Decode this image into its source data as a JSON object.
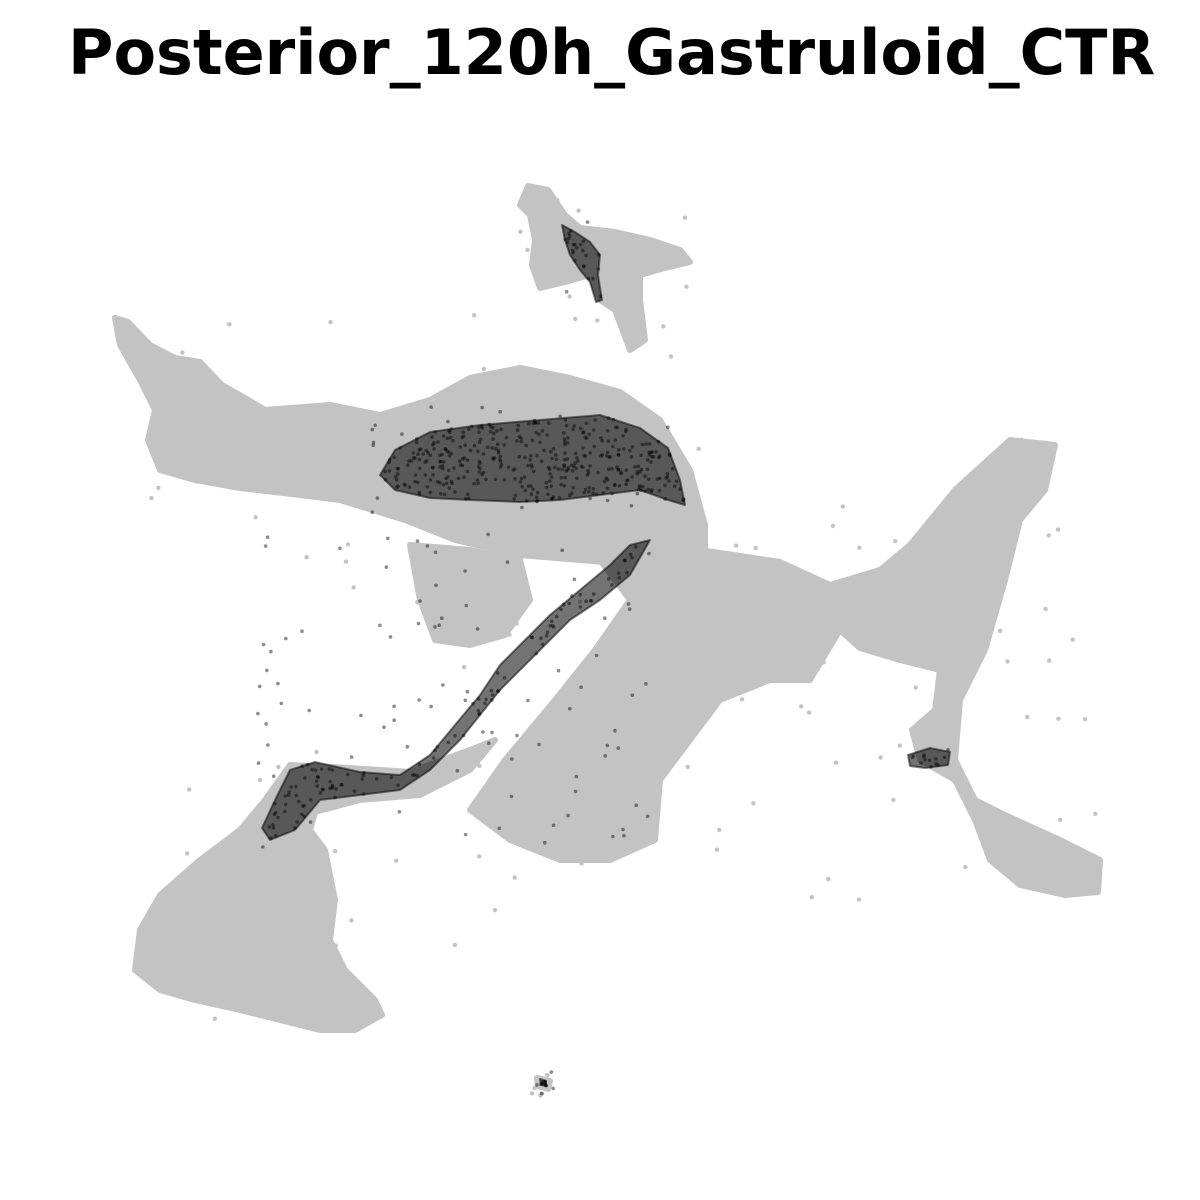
{
  "chart_data": {
    "type": "scatter",
    "title": "Posterior_120h_Gastruloid_CTR",
    "xlabel": "",
    "ylabel": "",
    "axes_visible": false,
    "grid": false,
    "legend": "none",
    "series": [
      {
        "role": "background-cells",
        "color": "#c3c3c3",
        "regions": [
          {
            "poly": [
              [
                115,
                318
              ],
              [
                128,
                322
              ],
              [
                150,
                345
              ],
              [
                175,
                358
              ],
              [
                200,
                362
              ],
              [
                222,
                385
              ],
              [
                245,
                398
              ],
              [
                265,
                410
              ],
              [
                330,
                405
              ],
              [
                380,
                415
              ],
              [
                430,
                400
              ],
              [
                470,
                378
              ],
              [
                520,
                368
              ],
              [
                570,
                378
              ],
              [
                620,
                392
              ],
              [
                660,
                420
              ],
              [
                690,
                470
              ],
              [
                705,
                525
              ],
              [
                705,
                560
              ],
              [
                690,
                580
              ],
              [
                640,
                565
              ],
              [
                580,
                560
              ],
              [
                520,
                555
              ],
              [
                455,
                540
              ],
              [
                405,
                520
              ],
              [
                340,
                500
              ],
              [
                300,
                495
              ],
              [
                240,
                488
              ],
              [
                195,
                480
              ],
              [
                160,
                470
              ],
              [
                148,
                440
              ],
              [
                155,
                410
              ],
              [
                140,
                380
              ],
              [
                120,
                345
              ]
            ]
          },
          {
            "poly": [
              [
                410,
                545
              ],
              [
                470,
                550
              ],
              [
                520,
                560
              ],
              [
                530,
                600
              ],
              [
                505,
                635
              ],
              [
                470,
                645
              ],
              [
                435,
                640
              ],
              [
                420,
                600
              ]
            ]
          },
          {
            "poly": [
              [
                600,
                560
              ],
              [
                700,
                550
              ],
              [
                780,
                562
              ],
              [
                830,
                585
              ],
              [
                880,
                570
              ],
              [
                910,
                545
              ],
              [
                955,
                490
              ],
              [
                1010,
                440
              ],
              [
                1055,
                445
              ],
              [
                1045,
                490
              ],
              [
                1020,
                520
              ],
              [
                1005,
                580
              ],
              [
                985,
                650
              ],
              [
                960,
                700
              ],
              [
                955,
                760
              ],
              [
                975,
                800
              ],
              [
                1005,
                815
              ],
              [
                1060,
                840
              ],
              [
                1100,
                860
              ],
              [
                1098,
                892
              ],
              [
                1065,
                895
              ],
              [
                1020,
                885
              ],
              [
                990,
                860
              ],
              [
                975,
                820
              ],
              [
                955,
                780
              ],
              [
                920,
                760
              ],
              [
                912,
                730
              ],
              [
                935,
                710
              ],
              [
                940,
                670
              ],
              [
                900,
                660
              ],
              [
                860,
                648
              ],
              [
                840,
                630
              ],
              [
                810,
                680
              ],
              [
                770,
                680
              ],
              [
                720,
                700
              ],
              [
                690,
                740
              ],
              [
                660,
                780
              ],
              [
                655,
                840
              ],
              [
                610,
                860
              ],
              [
                560,
                860
              ],
              [
                510,
                840
              ],
              [
                470,
                810
              ],
              [
                505,
                760
              ],
              [
                555,
                700
              ],
              [
                595,
                650
              ],
              [
                630,
                600
              ]
            ]
          },
          {
            "poly": [
              [
                290,
                765
              ],
              [
                350,
                768
              ],
              [
                410,
                772
              ],
              [
                470,
                750
              ],
              [
                495,
                740
              ],
              [
                470,
                770
              ],
              [
                420,
                795
              ],
              [
                360,
                800
              ],
              [
                315,
                812
              ],
              [
                310,
                830
              ],
              [
                325,
                850
              ],
              [
                335,
                900
              ],
              [
                330,
                940
              ],
              [
                345,
                970
              ],
              [
                375,
                1000
              ],
              [
                382,
                1015
              ],
              [
                355,
                1030
              ],
              [
                320,
                1030
              ],
              [
                280,
                1020
              ],
              [
                240,
                1010
              ],
              [
                195,
                1000
              ],
              [
                160,
                990
              ],
              [
                135,
                970
              ],
              [
                140,
                930
              ],
              [
                160,
                895
              ],
              [
                200,
                860
              ],
              [
                240,
                830
              ],
              [
                265,
                800
              ]
            ]
          },
          {
            "poly": [
              [
                528,
                186
              ],
              [
                548,
                190
              ],
              [
                565,
                215
              ],
              [
                580,
                228
              ],
              [
                615,
                232
              ],
              [
                650,
                240
              ],
              [
                680,
                250
              ],
              [
                690,
                262
              ],
              [
                665,
                268
              ],
              [
                640,
                275
              ],
              [
                640,
                300
              ],
              [
                645,
                340
              ],
              [
                630,
                350
              ],
              [
                615,
                310
              ],
              [
                600,
                300
              ],
              [
                590,
                275
              ],
              [
                565,
                282
              ],
              [
                540,
                288
              ],
              [
                532,
                265
              ],
              [
                535,
                240
              ],
              [
                530,
                215
              ],
              [
                520,
                205
              ]
            ]
          },
          {
            "poly": [
              [
                537,
                1078
              ],
              [
                550,
                1081
              ],
              [
                548,
                1089
              ],
              [
                538,
                1086
              ]
            ]
          }
        ]
      },
      {
        "role": "highlighted-cells",
        "color": "#000000",
        "regions": [
          {
            "poly": [
              [
                395,
                450
              ],
              [
                430,
                432
              ],
              [
                480,
                425
              ],
              [
                540,
                420
              ],
              [
                600,
                415
              ],
              [
                640,
                428
              ],
              [
                668,
                448
              ],
              [
                680,
                480
              ],
              [
                685,
                505
              ],
              [
                668,
                500
              ],
              [
                640,
                490
              ],
              [
                600,
                495
              ],
              [
                560,
                500
              ],
              [
                520,
                502
              ],
              [
                470,
                500
              ],
              [
                430,
                498
              ],
              [
                395,
                490
              ],
              [
                380,
                475
              ]
            ]
          },
          {
            "poly": [
              [
                650,
                540
              ],
              [
                630,
                575
              ],
              [
                600,
                600
              ],
              [
                570,
                620
              ],
              [
                545,
                645
              ],
              [
                520,
                670
              ],
              [
                500,
                690
              ],
              [
                480,
                715
              ],
              [
                460,
                740
              ],
              [
                430,
                770
              ],
              [
                400,
                790
              ],
              [
                360,
                795
              ],
              [
                320,
                800
              ],
              [
                295,
                830
              ],
              [
                270,
                840
              ],
              [
                262,
                828
              ],
              [
                275,
                800
              ],
              [
                290,
                770
              ],
              [
                315,
                762
              ],
              [
                360,
                772
              ],
              [
                400,
                775
              ],
              [
                430,
                755
              ],
              [
                455,
                725
              ],
              [
                480,
                695
              ],
              [
                500,
                665
              ],
              [
                525,
                640
              ],
              [
                550,
                615
              ],
              [
                580,
                590
              ],
              [
                610,
                565
              ],
              [
                630,
                545
              ]
            ]
          },
          {
            "poly": [
              [
                562,
                225
              ],
              [
                575,
                232
              ],
              [
                590,
                242
              ],
              [
                600,
                255
              ],
              [
                598,
                275
              ],
              [
                602,
                300
              ],
              [
                596,
                302
              ],
              [
                590,
                282
              ],
              [
                580,
                270
              ],
              [
                570,
                255
              ],
              [
                565,
                240
              ]
            ]
          },
          {
            "poly": [
              [
                908,
                755
              ],
              [
                930,
                748
              ],
              [
                950,
                752
              ],
              [
                948,
                765
              ],
              [
                925,
                768
              ],
              [
                910,
                766
              ]
            ]
          },
          {
            "poly": [
              [
                540,
                1079
              ],
              [
                546,
                1081
              ],
              [
                546,
                1086
              ],
              [
                541,
                1085
              ]
            ]
          }
        ]
      }
    ]
  }
}
